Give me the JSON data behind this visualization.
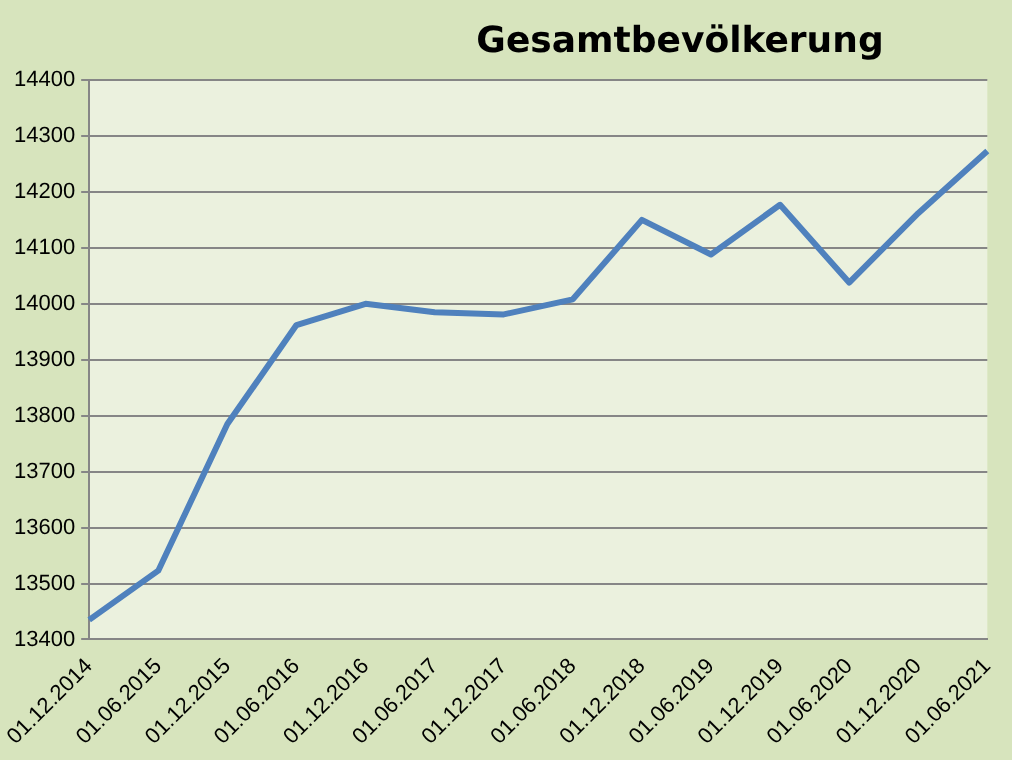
{
  "chart_data": {
    "type": "line",
    "title": "Gesamtbevölkerung",
    "categories": [
      "01.12.2014",
      "01.06.2015",
      "01.12.2015",
      "01.06.2016",
      "01.12.2016",
      "01.06.2017",
      "01.12.2017",
      "01.06.2018",
      "01.12.2018",
      "01.06.2019",
      "01.12.2019",
      "01.06.2020",
      "01.12.2020",
      "01.06.2021"
    ],
    "series": [
      {
        "color": "#4f81bd",
        "values": [
          13435,
          13523,
          13785,
          13962,
          14000,
          13985,
          13981,
          14008,
          14150,
          14088,
          14177,
          14038,
          14162,
          14273
        ]
      }
    ],
    "ylim": [
      13400,
      14400
    ],
    "yticks": [
      13400,
      13500,
      13600,
      13700,
      13800,
      13900,
      14000,
      14100,
      14200,
      14300,
      14400
    ],
    "grid": "y",
    "legend": false,
    "marker": "none",
    "line_style": "solid"
  }
}
